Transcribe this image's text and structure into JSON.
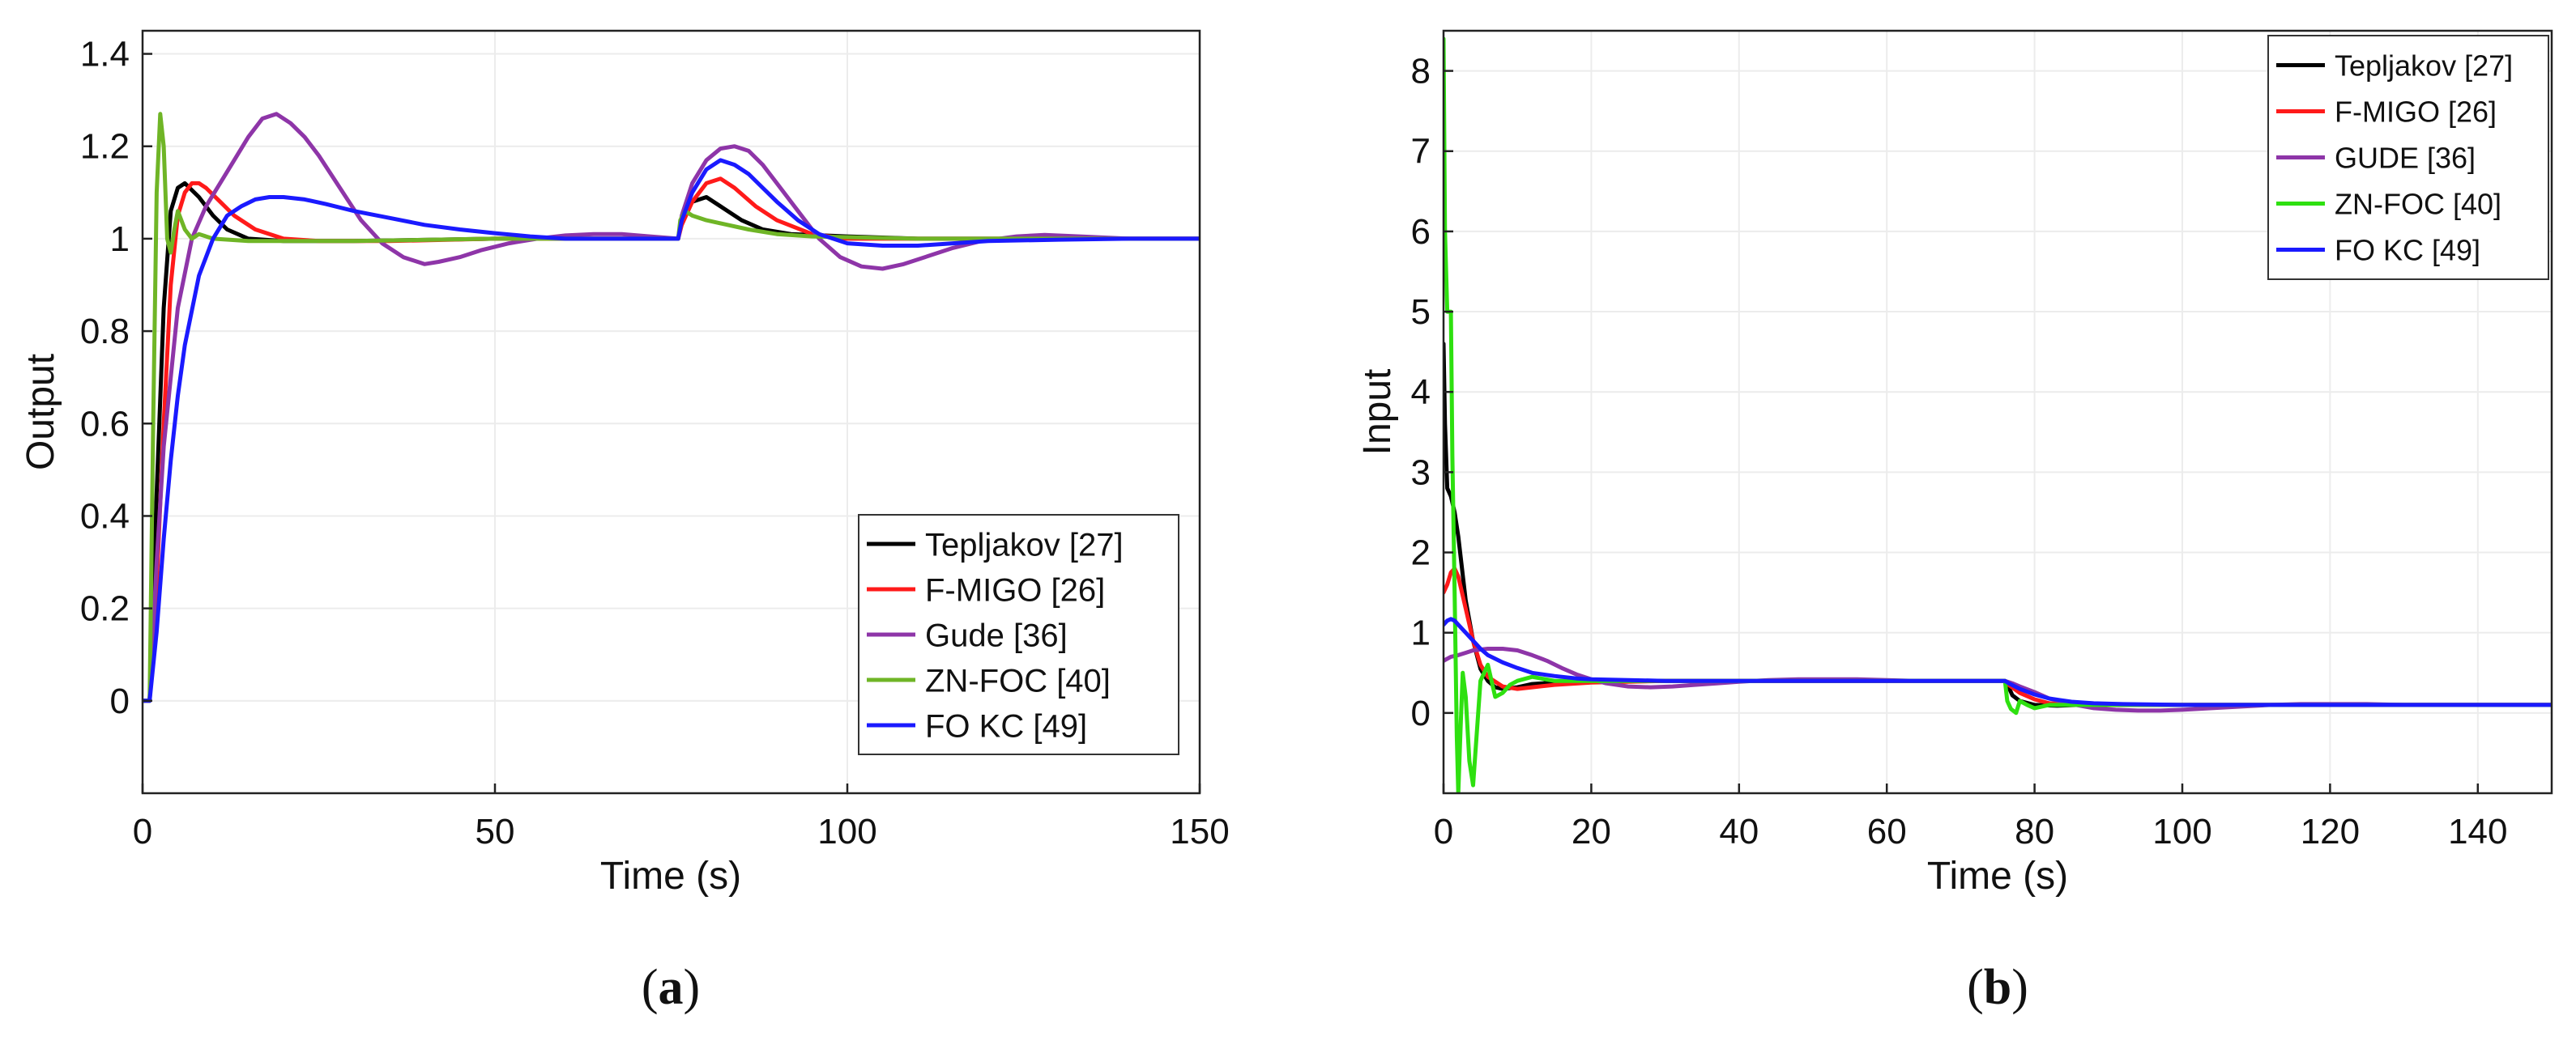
{
  "figure": {
    "panels": [
      {
        "caption_left": "(",
        "caption_bold": "a",
        "caption_right": ")"
      },
      {
        "caption_left": "(",
        "caption_bold": "b",
        "caption_right": ")"
      }
    ]
  },
  "colors": {
    "Tepljakov": "#000000",
    "FMIGO": "#ff1a1a",
    "Gude": "#8e35a8",
    "ZNFOC_a": "#6fb526",
    "ZNFOC_b": "#2ee010",
    "FOKC": "#1a1aff",
    "grid": "#ececec",
    "axis": "#222222"
  },
  "chart_data": [
    {
      "id": "a",
      "type": "line",
      "title": "",
      "xlabel": "Time (s)",
      "ylabel": "Output",
      "xlim": [
        0,
        150
      ],
      "ylim": [
        -0.2,
        1.45
      ],
      "xticks": [
        0,
        50,
        100,
        150
      ],
      "xtick_labels": [
        "0",
        "50",
        "100",
        "150"
      ],
      "yticks": [
        0,
        0.2,
        0.4,
        0.6,
        0.8,
        1,
        1.2,
        1.4
      ],
      "ytick_labels": [
        "0",
        "0.2",
        "0.4",
        "0.6",
        "0.8",
        "1",
        "1.2",
        "1.4"
      ],
      "grid": true,
      "legend_position": "bottom-right",
      "series": [
        {
          "name": "Tepljakov [27]",
          "color_key": "Tepljakov",
          "x": [
            0,
            1,
            2,
            3,
            4,
            5,
            6,
            8,
            10,
            12,
            15,
            20,
            30,
            50,
            76,
            76.5,
            78,
            80,
            82,
            85,
            88,
            92,
            100,
            110,
            130,
            150
          ],
          "y": [
            0,
            0,
            0.45,
            0.85,
            1.06,
            1.11,
            1.12,
            1.09,
            1.05,
            1.02,
            1.0,
            0.995,
            0.995,
            1.0,
            1.0,
            1.04,
            1.08,
            1.09,
            1.07,
            1.04,
            1.02,
            1.01,
            1.005,
            1.0,
            1.0,
            1.0
          ]
        },
        {
          "name": "F-MIGO [26]",
          "color_key": "FMIGO",
          "x": [
            0,
            1,
            2,
            3,
            4,
            5,
            6,
            7,
            8,
            9,
            11,
            13,
            16,
            20,
            25,
            35,
            50,
            76,
            76.5,
            78,
            80,
            82,
            84,
            87,
            90,
            95,
            100,
            110,
            130,
            150
          ],
          "y": [
            0,
            0,
            0.25,
            0.6,
            0.9,
            1.05,
            1.1,
            1.12,
            1.12,
            1.11,
            1.08,
            1.05,
            1.02,
            1.0,
            0.995,
            0.995,
            1.0,
            1.0,
            1.03,
            1.08,
            1.12,
            1.13,
            1.11,
            1.07,
            1.04,
            1.01,
            1.0,
            1.0,
            1.0,
            1.0
          ]
        },
        {
          "name": "Gude [36]",
          "color_key": "Gude",
          "x": [
            0,
            1,
            2,
            3,
            5,
            7,
            9,
            11,
            13,
            15,
            17,
            19,
            21,
            23,
            25,
            28,
            31,
            34,
            37,
            40,
            42,
            45,
            48,
            52,
            56,
            60,
            64,
            68,
            72,
            76,
            76.5,
            78,
            80,
            82,
            84,
            86,
            88,
            90,
            93,
            96,
            99,
            102,
            105,
            108,
            111,
            115,
            119,
            124,
            128,
            133,
            140,
            150
          ],
          "y": [
            0,
            0,
            0.3,
            0.55,
            0.85,
            1.0,
            1.07,
            1.12,
            1.17,
            1.22,
            1.26,
            1.27,
            1.25,
            1.22,
            1.18,
            1.11,
            1.04,
            0.99,
            0.96,
            0.945,
            0.95,
            0.96,
            0.975,
            0.99,
            1.0,
            1.007,
            1.01,
            1.01,
            1.005,
            1.0,
            1.05,
            1.12,
            1.17,
            1.195,
            1.2,
            1.19,
            1.16,
            1.12,
            1.06,
            1.0,
            0.96,
            0.94,
            0.935,
            0.945,
            0.96,
            0.98,
            0.995,
            1.005,
            1.008,
            1.005,
            1.0,
            1.0
          ]
        },
        {
          "name": "ZN-FOC [40]",
          "color_key": "ZNFOC_a",
          "x": [
            0,
            1,
            1.5,
            2,
            2.5,
            3,
            3.5,
            4,
            4.5,
            5,
            6,
            7,
            8,
            10,
            15,
            30,
            50,
            76,
            76.3,
            77,
            78,
            80,
            83,
            86,
            90,
            95,
            110,
            150
          ],
          "y": [
            0,
            0,
            0.6,
            1.1,
            1.27,
            1.2,
            1.0,
            0.97,
            1.02,
            1.06,
            1.02,
            1.0,
            1.01,
            1.0,
            0.995,
            0.995,
            1.0,
            1.0,
            1.04,
            1.06,
            1.05,
            1.04,
            1.03,
            1.02,
            1.01,
            1.005,
            1.0,
            1.0
          ]
        },
        {
          "name": "FO KC [49]",
          "color_key": "FOKC",
          "x": [
            0,
            1,
            2,
            3,
            4,
            5,
            6,
            8,
            10,
            12,
            14,
            16,
            18,
            20,
            23,
            26,
            30,
            35,
            40,
            45,
            50,
            55,
            60,
            65,
            70,
            76,
            76.5,
            78,
            80,
            82,
            84,
            86,
            88,
            90,
            93,
            96,
            100,
            105,
            110,
            115,
            120,
            130,
            140,
            150
          ],
          "y": [
            0,
            0,
            0.15,
            0.35,
            0.52,
            0.66,
            0.77,
            0.92,
            1.0,
            1.05,
            1.07,
            1.085,
            1.09,
            1.09,
            1.085,
            1.075,
            1.06,
            1.045,
            1.03,
            1.02,
            1.012,
            1.005,
            1.0,
            1.0,
            1.0,
            1.0,
            1.04,
            1.1,
            1.15,
            1.17,
            1.16,
            1.14,
            1.11,
            1.08,
            1.04,
            1.01,
            0.99,
            0.985,
            0.985,
            0.99,
            0.995,
            0.998,
            1.0,
            1.0
          ]
        }
      ]
    },
    {
      "id": "b",
      "type": "line",
      "title": "",
      "xlabel": "Time (s)",
      "ylabel": "Input",
      "xlim": [
        0,
        150
      ],
      "ylim": [
        -1,
        8.5
      ],
      "xticks": [
        0,
        20,
        40,
        60,
        80,
        100,
        120,
        140
      ],
      "xtick_labels": [
        "0",
        "20",
        "40",
        "60",
        "80",
        "100",
        "120",
        "140"
      ],
      "yticks": [
        0,
        1,
        2,
        3,
        4,
        5,
        6,
        7,
        8
      ],
      "ytick_labels": [
        "0",
        "1",
        "2",
        "3",
        "4",
        "5",
        "6",
        "7",
        "8"
      ],
      "grid": true,
      "legend_position": "top-right",
      "series": [
        {
          "name": "Tepljakov [27]",
          "color_key": "Tepljakov",
          "x": [
            0,
            0.2,
            0.5,
            1,
            1.5,
            2,
            2.5,
            3,
            4,
            5,
            6,
            7,
            8,
            10,
            12,
            15,
            20,
            30,
            40,
            50,
            60,
            70,
            76,
            76.5,
            77,
            78,
            80,
            83,
            86,
            90,
            100,
            110,
            120,
            130,
            140,
            150
          ],
          "y": [
            4.6,
            3.6,
            2.8,
            2.7,
            2.5,
            2.2,
            1.8,
            1.4,
            0.9,
            0.55,
            0.4,
            0.32,
            0.3,
            0.32,
            0.36,
            0.38,
            0.4,
            0.4,
            0.4,
            0.4,
            0.4,
            0.4,
            0.4,
            0.32,
            0.22,
            0.15,
            0.1,
            0.09,
            0.1,
            0.1,
            0.1,
            0.1,
            0.1,
            0.1,
            0.1,
            0.1
          ]
        },
        {
          "name": "F-MIGO [26]",
          "color_key": "FMIGO",
          "x": [
            0,
            0.5,
            1,
            1.5,
            2,
            3,
            4,
            5,
            6,
            8,
            10,
            12,
            15,
            20,
            30,
            40,
            50,
            60,
            70,
            76,
            76.5,
            78,
            80,
            82,
            85,
            88,
            92,
            100,
            110,
            120,
            130,
            140,
            150
          ],
          "y": [
            1.5,
            1.6,
            1.75,
            1.8,
            1.7,
            1.3,
            0.9,
            0.6,
            0.45,
            0.33,
            0.3,
            0.32,
            0.35,
            0.38,
            0.4,
            0.4,
            0.4,
            0.4,
            0.4,
            0.4,
            0.35,
            0.25,
            0.17,
            0.12,
            0.1,
            0.1,
            0.1,
            0.1,
            0.1,
            0.1,
            0.1,
            0.1,
            0.1
          ]
        },
        {
          "name": "GUDE [36]",
          "color_key": "Gude",
          "x": [
            0,
            1,
            2,
            3,
            4,
            6,
            8,
            10,
            12,
            14,
            16,
            18,
            20,
            22,
            25,
            28,
            31,
            34,
            37,
            40,
            44,
            48,
            52,
            56,
            60,
            64,
            68,
            72,
            76,
            77,
            78,
            80,
            82,
            85,
            88,
            91,
            94,
            97,
            100,
            104,
            108,
            112,
            116,
            120,
            125,
            130,
            140,
            150
          ],
          "y": [
            0.65,
            0.7,
            0.72,
            0.75,
            0.78,
            0.8,
            0.8,
            0.78,
            0.72,
            0.65,
            0.56,
            0.48,
            0.42,
            0.37,
            0.33,
            0.32,
            0.33,
            0.35,
            0.37,
            0.39,
            0.41,
            0.42,
            0.42,
            0.42,
            0.41,
            0.4,
            0.4,
            0.4,
            0.4,
            0.37,
            0.33,
            0.26,
            0.18,
            0.11,
            0.06,
            0.04,
            0.03,
            0.03,
            0.04,
            0.06,
            0.08,
            0.1,
            0.11,
            0.11,
            0.11,
            0.1,
            0.1,
            0.1
          ]
        },
        {
          "name": "ZN-FOC [40]",
          "color_key": "ZNFOC_b",
          "x": [
            0,
            0.2,
            0.5,
            1,
            1.2,
            1.5,
            1.8,
            2,
            2.3,
            2.6,
            3,
            3.5,
            4,
            5,
            6,
            7,
            8,
            9,
            10,
            12,
            15,
            20,
            30,
            40,
            50,
            60,
            70,
            76,
            76.3,
            76.8,
            77.5,
            78,
            79,
            80,
            82,
            85,
            90,
            100,
            110,
            120,
            130,
            140,
            150
          ],
          "y": [
            8.4,
            6.0,
            5.0,
            5.0,
            3.2,
            1.5,
            -0.3,
            -1.0,
            -0.2,
            0.5,
            0.2,
            -0.6,
            -0.9,
            0.4,
            0.6,
            0.2,
            0.25,
            0.35,
            0.4,
            0.45,
            0.4,
            0.4,
            0.4,
            0.4,
            0.4,
            0.4,
            0.4,
            0.4,
            0.15,
            0.05,
            0.0,
            0.15,
            0.1,
            0.06,
            0.1,
            0.1,
            0.1,
            0.1,
            0.1,
            0.1,
            0.1,
            0.1,
            0.1
          ]
        },
        {
          "name": "FO KC [49]",
          "color_key": "FOKC",
          "x": [
            0,
            0.5,
            1,
            1.5,
            2,
            3,
            4,
            5,
            6,
            8,
            10,
            12,
            15,
            18,
            20,
            25,
            30,
            40,
            50,
            60,
            70,
            76,
            76.5,
            78,
            80,
            82,
            85,
            88,
            92,
            100,
            110,
            120,
            130,
            140,
            150
          ],
          "y": [
            1.1,
            1.15,
            1.17,
            1.15,
            1.1,
            1.0,
            0.9,
            0.8,
            0.72,
            0.63,
            0.56,
            0.5,
            0.46,
            0.43,
            0.42,
            0.41,
            0.4,
            0.4,
            0.4,
            0.4,
            0.4,
            0.4,
            0.37,
            0.3,
            0.23,
            0.18,
            0.14,
            0.12,
            0.11,
            0.1,
            0.1,
            0.1,
            0.1,
            0.1,
            0.1
          ]
        }
      ]
    }
  ]
}
